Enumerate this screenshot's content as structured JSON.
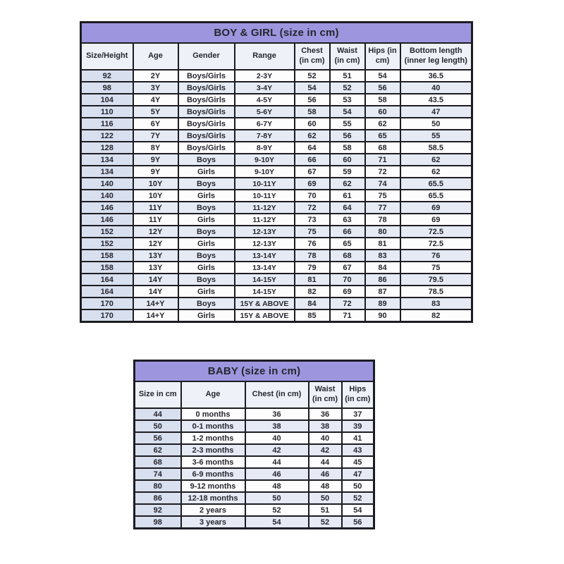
{
  "colors": {
    "title_bar": "#9d96df",
    "title_text": "#13132f",
    "header_cell": "#eef1f8",
    "first_column": "#d8dfee",
    "stripe_row": "#e6eaf4",
    "border": "#1c1c22",
    "text": "#26262e",
    "page_background": "#ffffff"
  },
  "chart_data": [
    {
      "type": "table",
      "title": "BOY & GIRL (size in cm)",
      "columns": [
        "Size/Height",
        "Age",
        "Gender",
        "Range",
        "Chest (in cm)",
        "Waist (in cm)",
        "Hips (in cm)",
        "Bottom length (inner leg length)"
      ],
      "rows": [
        [
          "92",
          "2Y",
          "Boys/Girls",
          "2-3Y",
          "52",
          "51",
          "54",
          "36.5"
        ],
        [
          "98",
          "3Y",
          "Boys/Girls",
          "3-4Y",
          "54",
          "52",
          "56",
          "40"
        ],
        [
          "104",
          "4Y",
          "Boys/Girls",
          "4-5Y",
          "56",
          "53",
          "58",
          "43.5"
        ],
        [
          "110",
          "5Y",
          "Boys/Girls",
          "5-6Y",
          "58",
          "54",
          "60",
          "47"
        ],
        [
          "116",
          "6Y",
          "Boys/Girls",
          "6-7Y",
          "60",
          "55",
          "62",
          "50"
        ],
        [
          "122",
          "7Y",
          "Boys/Girls",
          "7-8Y",
          "62",
          "56",
          "65",
          "55"
        ],
        [
          "128",
          "8Y",
          "Boys/Girls",
          "8-9Y",
          "64",
          "58",
          "68",
          "58.5"
        ],
        [
          "134",
          "9Y",
          "Boys",
          "9-10Y",
          "66",
          "60",
          "71",
          "62"
        ],
        [
          "134",
          "9Y",
          "Girls",
          "9-10Y",
          "67",
          "59",
          "72",
          "62"
        ],
        [
          "140",
          "10Y",
          "Boys",
          "10-11Y",
          "69",
          "62",
          "74",
          "65.5"
        ],
        [
          "140",
          "10Y",
          "Girls",
          "10-11Y",
          "70",
          "61",
          "75",
          "65.5"
        ],
        [
          "146",
          "11Y",
          "Boys",
          "11-12Y",
          "72",
          "64",
          "77",
          "69"
        ],
        [
          "146",
          "11Y",
          "Girls",
          "11-12Y",
          "73",
          "63",
          "78",
          "69"
        ],
        [
          "152",
          "12Y",
          "Boys",
          "12-13Y",
          "75",
          "66",
          "80",
          "72.5"
        ],
        [
          "152",
          "12Y",
          "Girls",
          "12-13Y",
          "76",
          "65",
          "81",
          "72.5"
        ],
        [
          "158",
          "13Y",
          "Boys",
          "13-14Y",
          "78",
          "68",
          "83",
          "76"
        ],
        [
          "158",
          "13Y",
          "Girls",
          "13-14Y",
          "79",
          "67",
          "84",
          "75"
        ],
        [
          "164",
          "14Y",
          "Boys",
          "14-15Y",
          "81",
          "70",
          "86",
          "79.5"
        ],
        [
          "164",
          "14Y",
          "Girls",
          "14-15Y",
          "82",
          "69",
          "87",
          "78.5"
        ],
        [
          "170",
          "14+Y",
          "Boys",
          "15Y & ABOVE",
          "84",
          "72",
          "89",
          "83"
        ],
        [
          "170",
          "14+Y",
          "Girls",
          "15Y & ABOVE",
          "85",
          "71",
          "90",
          "82"
        ]
      ]
    },
    {
      "type": "table",
      "title": "BABY (size in cm)",
      "columns": [
        "Size in cm",
        "Age",
        "Chest (in cm)",
        "Waist (in cm)",
        "Hips (in cm)"
      ],
      "rows": [
        [
          "44",
          "0 months",
          "36",
          "36",
          "37"
        ],
        [
          "50",
          "0-1 months",
          "38",
          "38",
          "39"
        ],
        [
          "56",
          "1-2 months",
          "40",
          "40",
          "41"
        ],
        [
          "62",
          "2-3 months",
          "42",
          "42",
          "43"
        ],
        [
          "68",
          "3-6 months",
          "44",
          "44",
          "45"
        ],
        [
          "74",
          "6-9 months",
          "46",
          "46",
          "47"
        ],
        [
          "80",
          "9-12 months",
          "48",
          "48",
          "50"
        ],
        [
          "86",
          "12-18 months",
          "50",
          "50",
          "52"
        ],
        [
          "92",
          "2 years",
          "52",
          "51",
          "54"
        ],
        [
          "98",
          "3 years",
          "54",
          "52",
          "56"
        ]
      ]
    }
  ]
}
